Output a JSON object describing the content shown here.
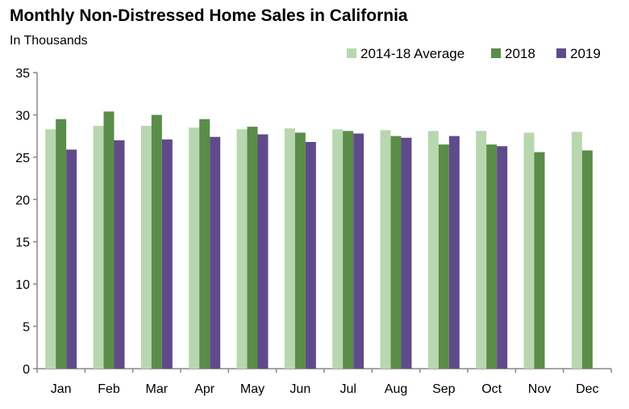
{
  "chart_data": {
    "type": "bar",
    "title": "Monthly Non-Distressed Home Sales in California",
    "subtitle": "In Thousands",
    "xlabel": "",
    "ylabel": "",
    "ylim": [
      0,
      35
    ],
    "yticks": [
      0,
      5,
      10,
      15,
      20,
      25,
      30,
      35
    ],
    "grid": false,
    "legend_position": "top-right",
    "categories": [
      "Jan",
      "Feb",
      "Mar",
      "Apr",
      "May",
      "Jun",
      "Jul",
      "Aug",
      "Sep",
      "Oct",
      "Nov",
      "Dec"
    ],
    "series": [
      {
        "name": "2014-18 Average",
        "color": "#b8d7ae",
        "values": [
          28.3,
          28.7,
          28.7,
          28.5,
          28.3,
          28.4,
          28.3,
          28.2,
          28.1,
          28.1,
          27.9,
          28.0
        ]
      },
      {
        "name": "2018",
        "color": "#5a8c4a",
        "values": [
          29.5,
          30.4,
          30.0,
          29.5,
          28.6,
          27.9,
          28.1,
          27.5,
          26.5,
          26.5,
          25.6,
          25.8
        ]
      },
      {
        "name": "2019",
        "color": "#604b8a",
        "values": [
          25.9,
          27.0,
          27.1,
          27.4,
          27.7,
          26.8,
          27.8,
          27.3,
          27.5,
          26.3,
          null,
          null
        ]
      }
    ]
  }
}
